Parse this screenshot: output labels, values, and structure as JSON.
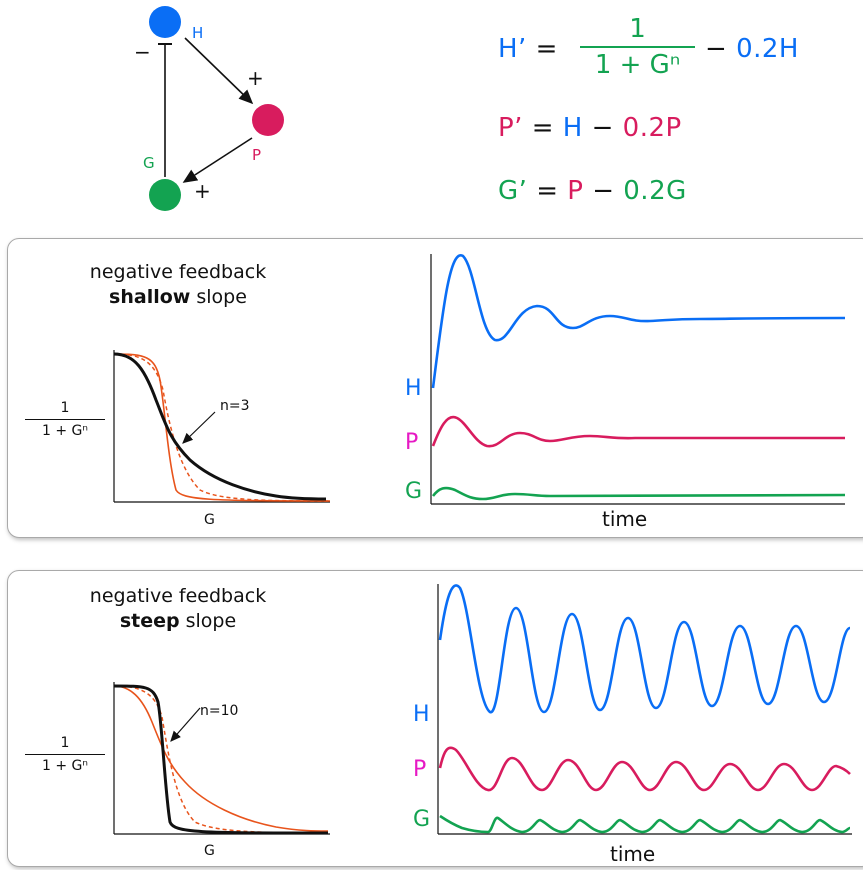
{
  "network": {
    "nodes": [
      {
        "label": "H",
        "color": "#0a6ef5"
      },
      {
        "label": "P",
        "color": "#d81c5e"
      },
      {
        "label": "G",
        "color": "#13a351"
      }
    ],
    "signs": {
      "h_to_p": "+",
      "p_to_g": "+",
      "g_to_h": "−"
    }
  },
  "equations": {
    "h": {
      "lhs": "H’",
      "eq": "=",
      "num": "1",
      "den": "1 + Gⁿ",
      "minus": "−",
      "decay": "0.2H"
    },
    "p": {
      "lhs": "P’",
      "eq": "=",
      "src": "H",
      "minus": "−",
      "decay": "0.2P"
    },
    "g": {
      "lhs": "G’",
      "eq": "=",
      "src": "P",
      "minus": "−",
      "decay": "0.2G"
    }
  },
  "panels": [
    {
      "title_line1": "negative feedback",
      "title_bold": "shallow",
      "title_rest": " slope",
      "frac_num": "1",
      "frac_den": "1 + Gⁿ",
      "x_axis_label": "G",
      "n_label": "n=3",
      "series_labels": [
        "H",
        "P",
        "G"
      ],
      "time_label": "time"
    },
    {
      "title_line1": "negative feedback",
      "title_bold": "steep",
      "title_rest": " slope",
      "frac_num": "1",
      "frac_den": "1 + Gⁿ",
      "x_axis_label": "G",
      "n_label": "n=10",
      "series_labels": [
        "H",
        "P",
        "G"
      ],
      "time_label": "time"
    }
  ],
  "colors": {
    "H": "#0a6ef5",
    "P": "#d81c5e",
    "G": "#13a351",
    "label_P": "#e619c4",
    "hill": "#e8541c",
    "dark": "#111111"
  }
}
